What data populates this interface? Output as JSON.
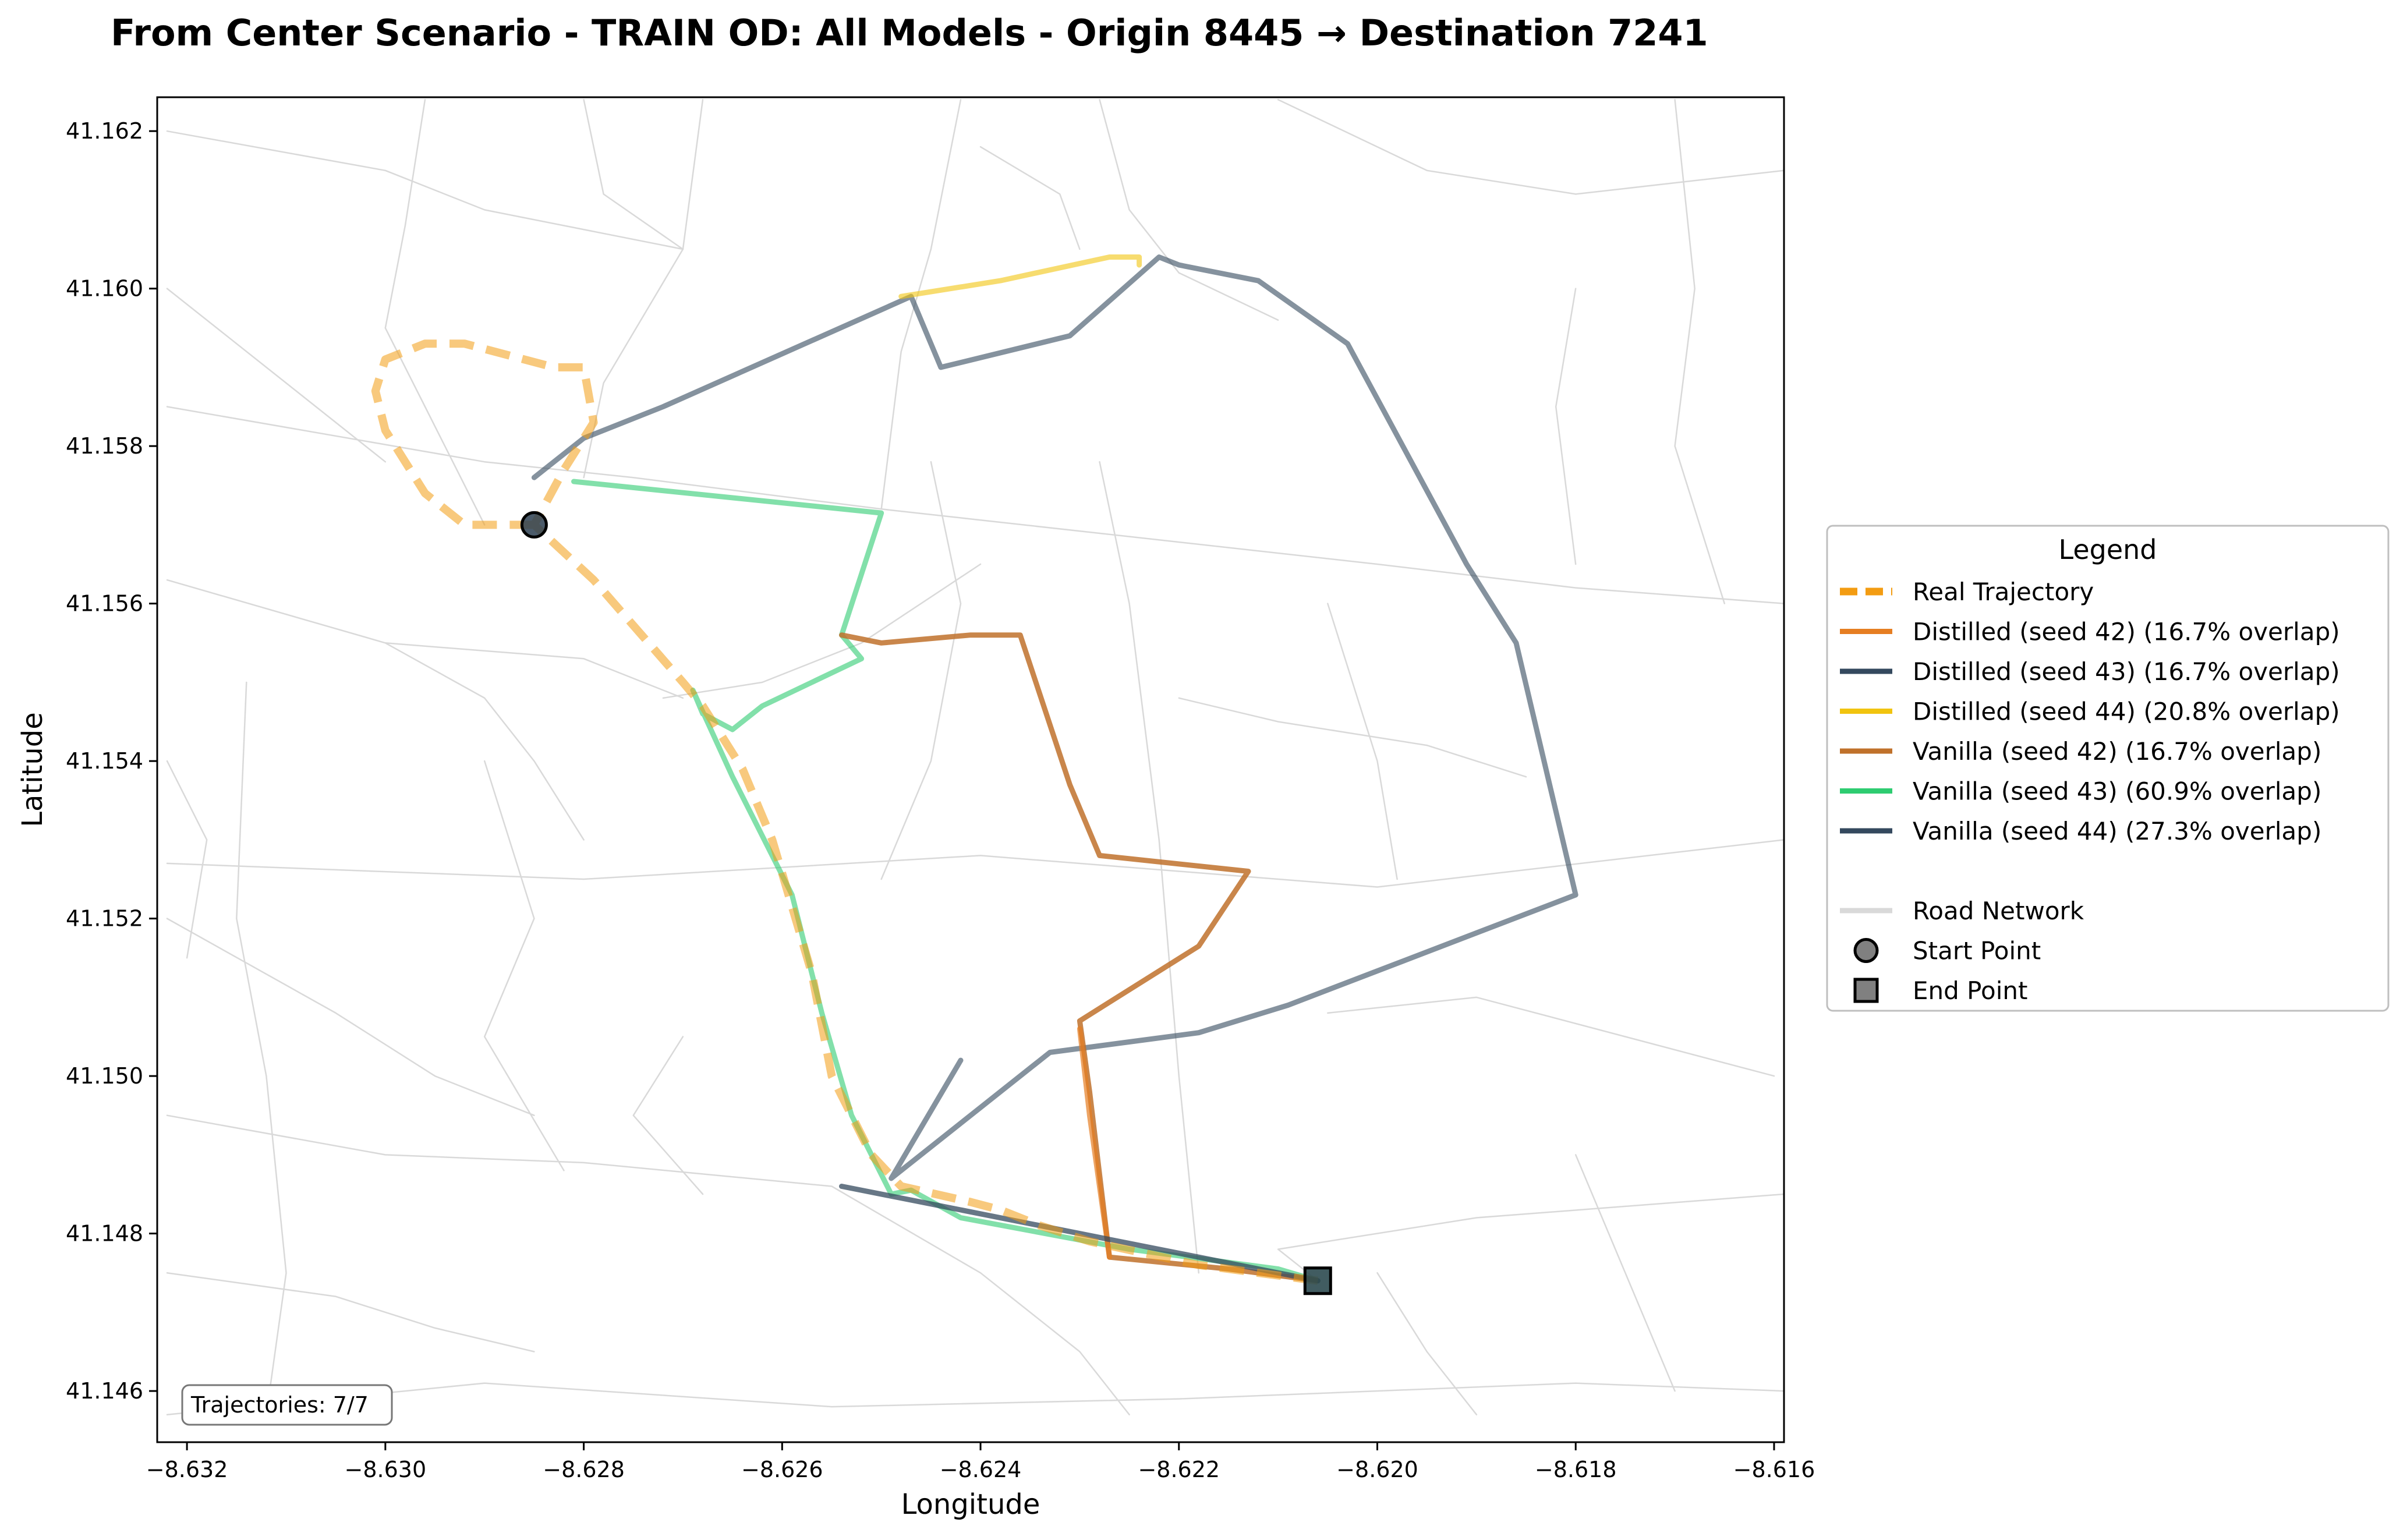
{
  "chart_data": {
    "type": "line",
    "title": "From Center Scenario - TRAIN OD: All Models - Origin 8445 → Destination 7241",
    "xlabel": "Longitude",
    "ylabel": "Latitude",
    "xlim": [
      -8.6323,
      -8.6159
    ],
    "ylim": [
      41.14535,
      41.16243
    ],
    "x_ticks": [
      -8.632,
      -8.63,
      -8.628,
      -8.626,
      -8.624,
      -8.622,
      -8.62,
      -8.618,
      -8.616
    ],
    "x_tick_labels": [
      "−8.632",
      "−8.630",
      "−8.628",
      "−8.626",
      "−8.624",
      "−8.622",
      "−8.620",
      "−8.618",
      "−8.616"
    ],
    "y_ticks": [
      41.146,
      41.148,
      41.15,
      41.152,
      41.154,
      41.156,
      41.158,
      41.16,
      41.162
    ],
    "y_tick_labels": [
      "41.146",
      "41.148",
      "41.150",
      "41.152",
      "41.154",
      "41.156",
      "41.158",
      "41.160",
      "41.162"
    ],
    "grid": false,
    "legend_placement": "right",
    "legend_title": "Legend",
    "annotation": "Trajectories: 7/7",
    "road_color": "#d9d9d9",
    "road_network": [
      [
        [
          -8.6322,
          41.1585
        ],
        [
          -8.629,
          41.1578
        ],
        [
          -8.6275,
          41.1576
        ],
        [
          -8.625,
          41.1572
        ],
        [
          -8.62,
          41.1565
        ],
        [
          -8.618,
          41.1562
        ],
        [
          -8.6159,
          41.156
        ]
      ],
      [
        [
          -8.6322,
          41.1527
        ],
        [
          -8.628,
          41.1525
        ],
        [
          -8.624,
          41.1528
        ],
        [
          -8.62,
          41.1524
        ],
        [
          -8.6159,
          41.153
        ]
      ],
      [
        [
          -8.6322,
          41.1495
        ],
        [
          -8.63,
          41.149
        ],
        [
          -8.628,
          41.1489
        ],
        [
          -8.6255,
          41.1486
        ]
      ],
      [
        [
          -8.6159,
          41.1485
        ],
        [
          -8.619,
          41.1482
        ],
        [
          -8.621,
          41.1478
        ],
        [
          -8.6206,
          41.1474
        ]
      ],
      [
        [
          -8.6322,
          41.1457
        ],
        [
          -8.629,
          41.1461
        ],
        [
          -8.6255,
          41.1458
        ],
        [
          -8.622,
          41.1459
        ],
        [
          -8.618,
          41.1461
        ],
        [
          -8.6159,
          41.146
        ]
      ],
      [
        [
          -8.6322,
          41.1563
        ],
        [
          -8.63,
          41.1555
        ],
        [
          -8.629,
          41.1548
        ],
        [
          -8.6285,
          41.154
        ],
        [
          -8.628,
          41.153
        ]
      ],
      [
        [
          -8.6296,
          41.1624
        ],
        [
          -8.6298,
          41.1608
        ],
        [
          -8.63,
          41.1595
        ],
        [
          -8.6296,
          41.1585
        ],
        [
          -8.629,
          41.157
        ]
      ],
      [
        [
          -8.6268,
          41.1624
        ],
        [
          -8.627,
          41.1605
        ],
        [
          -8.6278,
          41.1588
        ],
        [
          -8.628,
          41.1576
        ]
      ],
      [
        [
          -8.6242,
          41.1624
        ],
        [
          -8.6245,
          41.1605
        ],
        [
          -8.6248,
          41.1592
        ],
        [
          -8.625,
          41.1572
        ]
      ],
      [
        [
          -8.6228,
          41.1624
        ],
        [
          -8.6225,
          41.161
        ],
        [
          -8.622,
          41.1602
        ],
        [
          -8.621,
          41.1596
        ]
      ],
      [
        [
          -8.6322,
          41.162
        ],
        [
          -8.63,
          41.1615
        ],
        [
          -8.629,
          41.161
        ],
        [
          -8.627,
          41.1605
        ]
      ],
      [
        [
          -8.621,
          41.1624
        ],
        [
          -8.6195,
          41.1615
        ],
        [
          -8.618,
          41.1612
        ],
        [
          -8.6159,
          41.1615
        ]
      ],
      [
        [
          -8.6322,
          41.16
        ],
        [
          -8.631,
          41.1588
        ],
        [
          -8.63,
          41.1578
        ]
      ],
      [
        [
          -8.6245,
          41.1578
        ],
        [
          -8.6242,
          41.156
        ],
        [
          -8.6245,
          41.154
        ],
        [
          -8.625,
          41.1525
        ]
      ],
      [
        [
          -8.6228,
          41.1578
        ],
        [
          -8.6225,
          41.156
        ],
        [
          -8.6222,
          41.153
        ],
        [
          -8.622,
          41.15
        ],
        [
          -8.6218,
          41.1475
        ]
      ],
      [
        [
          -8.6205,
          41.156
        ],
        [
          -8.62,
          41.154
        ],
        [
          -8.6198,
          41.1525
        ]
      ],
      [
        [
          -8.618,
          41.16
        ],
        [
          -8.6182,
          41.1585
        ],
        [
          -8.618,
          41.1565
        ]
      ],
      [
        [
          -8.617,
          41.1624
        ],
        [
          -8.6168,
          41.16
        ],
        [
          -8.617,
          41.158
        ],
        [
          -8.6165,
          41.156
        ]
      ],
      [
        [
          -8.6314,
          41.155
        ],
        [
          -8.6315,
          41.152
        ],
        [
          -8.6312,
          41.15
        ],
        [
          -8.631,
          41.1475
        ],
        [
          -8.6312,
          41.1457
        ]
      ],
      [
        [
          -8.629,
          41.154
        ],
        [
          -8.6285,
          41.152
        ],
        [
          -8.629,
          41.1505
        ],
        [
          -8.6282,
          41.1488
        ]
      ],
      [
        [
          -8.6255,
          41.1486
        ],
        [
          -8.624,
          41.1475
        ],
        [
          -8.623,
          41.1465
        ],
        [
          -8.6225,
          41.1457
        ]
      ],
      [
        [
          -8.62,
          41.1475
        ],
        [
          -8.6195,
          41.1465
        ],
        [
          -8.619,
          41.1457
        ]
      ],
      [
        [
          -8.618,
          41.149
        ],
        [
          -8.6175,
          41.1475
        ],
        [
          -8.617,
          41.146
        ]
      ],
      [
        [
          -8.624,
          41.1565
        ],
        [
          -8.6252,
          41.1555
        ],
        [
          -8.6262,
          41.155
        ],
        [
          -8.6272,
          41.1548
        ]
      ],
      [
        [
          -8.63,
          41.1555
        ],
        [
          -8.628,
          41.1553
        ],
        [
          -8.627,
          41.1548
        ]
      ],
      [
        [
          -8.622,
          41.1548
        ],
        [
          -8.621,
          41.1545
        ],
        [
          -8.6195,
          41.1542
        ],
        [
          -8.6185,
          41.1538
        ]
      ],
      [
        [
          -8.6322,
          41.154
        ],
        [
          -8.6318,
          41.153
        ],
        [
          -8.632,
          41.1515
        ]
      ],
      [
        [
          -8.6322,
          41.152
        ],
        [
          -8.6305,
          41.1508
        ],
        [
          -8.6295,
          41.15
        ],
        [
          -8.6285,
          41.1495
        ]
      ],
      [
        [
          -8.6322,
          41.1475
        ],
        [
          -8.6305,
          41.1472
        ],
        [
          -8.6295,
          41.1468
        ],
        [
          -8.6285,
          41.1465
        ]
      ],
      [
        [
          -8.627,
          41.1505
        ],
        [
          -8.6275,
          41.1495
        ],
        [
          -8.6268,
          41.1485
        ]
      ],
      [
        [
          -8.616,
          41.15
        ],
        [
          -8.6175,
          41.1505
        ],
        [
          -8.619,
          41.151
        ],
        [
          -8.6205,
          41.1508
        ]
      ],
      [
        [
          -8.628,
          41.1624
        ],
        [
          -8.6278,
          41.1612
        ],
        [
          -8.627,
          41.1605
        ]
      ],
      [
        [
          -8.624,
          41.1618
        ],
        [
          -8.6232,
          41.1612
        ],
        [
          -8.623,
          41.1605
        ]
      ]
    ],
    "series": [
      {
        "name": "Vanilla (seed 43) (60.9% overlap)",
        "color": "#2ecc71",
        "opacity": 0.6,
        "dash": false,
        "x": [
          -8.6281,
          -8.625,
          -8.6254,
          -8.6252,
          -8.6262,
          -8.6265,
          -8.6268,
          -8.6269,
          -8.6265,
          -8.6259,
          -8.6256,
          -8.6253,
          -8.6249,
          -8.6247,
          -8.6242,
          -8.6225,
          -8.621,
          -8.6206
        ],
        "y": [
          41.15755,
          41.15715,
          41.1556,
          41.1553,
          41.1547,
          41.1544,
          41.1546,
          41.1549,
          41.1538,
          41.1523,
          41.1508,
          41.1495,
          41.1485,
          41.14855,
          41.1482,
          41.1478,
          41.14755,
          41.1474
        ]
      },
      {
        "name": "Vanilla (seed 44) (27.3% overlap)",
        "color": "#34495e",
        "opacity": 0.6,
        "dash": false,
        "x": [
          -8.6242,
          -8.6249,
          -8.6233,
          -8.6218,
          -8.6209,
          -8.618,
          -8.6186,
          -8.6191,
          -8.6203,
          -8.6212,
          -8.622,
          -8.6222,
          -8.6231,
          -8.6244,
          -8.6247,
          -8.6272,
          -8.628,
          -8.6285
        ],
        "y": [
          41.1502,
          41.1487,
          41.1503,
          41.15055,
          41.1509,
          41.1523,
          41.1555,
          41.1565,
          41.1593,
          41.1601,
          41.1603,
          41.1604,
          41.1594,
          41.159,
          41.1599,
          41.1585,
          41.1581,
          41.1576
        ]
      },
      {
        "name": "Vanilla (seed 42) (16.7% overlap)",
        "color": "#c0712b",
        "opacity": 0.85,
        "dash": false,
        "x": [
          -8.6254,
          -8.625,
          -8.6241,
          -8.6236,
          -8.6231,
          -8.6228,
          -8.6213,
          -8.6218,
          -8.623,
          -8.6229,
          -8.6227,
          -8.6215,
          -8.6206
        ],
        "y": [
          41.1556,
          41.1555,
          41.1556,
          41.1556,
          41.1537,
          41.1528,
          41.1526,
          41.15165,
          41.1507,
          41.1498,
          41.1477,
          41.14755,
          41.1474
        ]
      },
      {
        "name": "Distilled (seed 42) (16.7% overlap)",
        "color": "#e67e22",
        "opacity": 0.7,
        "dash": false,
        "x": [
          -8.6227,
          -8.6229,
          -8.623
        ],
        "y": [
          41.1477,
          41.1495,
          41.1506
        ]
      },
      {
        "name": "Distilled (seed 43) (16.7% overlap)",
        "color": "#34495e",
        "opacity": 0.75,
        "dash": false,
        "x": [
          -8.6254,
          -8.6246,
          -8.6234,
          -8.6218,
          -8.6206
        ],
        "y": [
          41.1486,
          41.1484,
          41.1481,
          41.1477,
          41.1474
        ]
      },
      {
        "name": "Distilled (seed 44) (20.8% overlap)",
        "color": "#f1c40f",
        "opacity": 0.6,
        "dash": false,
        "x": [
          -8.6248,
          -8.6238,
          -8.6227,
          -8.6224,
          -8.6224
        ],
        "y": [
          41.1599,
          41.1601,
          41.1604,
          41.1604,
          41.1603
        ]
      },
      {
        "name": "Real Trajectory",
        "color": "#f39c12",
        "opacity": 0.55,
        "dash": true,
        "x": [
          -8.6285,
          -8.6288,
          -8.6292,
          -8.6296,
          -8.63,
          -8.6301,
          -8.63,
          -8.6296,
          -8.6292,
          -8.6283,
          -8.628,
          -8.6279,
          -8.6282,
          -8.6285,
          -8.6279,
          -8.627,
          -8.6268,
          -8.6264,
          -8.6261,
          -8.6257,
          -8.6255,
          -8.6251,
          -8.6248,
          -8.6241,
          -8.6238,
          -8.6234,
          -8.6229,
          -8.6218,
          -8.6206
        ],
        "y": [
          41.157,
          41.157,
          41.157,
          41.1574,
          41.1582,
          41.1587,
          41.1591,
          41.1593,
          41.1593,
          41.159,
          41.159,
          41.1583,
          41.1577,
          41.157,
          41.1563,
          41.155,
          41.1547,
          41.1539,
          41.153,
          41.1513,
          41.15,
          41.149,
          41.1486,
          41.1484,
          41.1483,
          41.1481,
          41.1479,
          41.1476,
          41.1474
        ]
      }
    ],
    "start_point": {
      "label": "Start Point",
      "x": -8.6285,
      "y": 41.157,
      "color": "#2c3e50"
    },
    "end_point": {
      "label": "End Point",
      "x": -8.6206,
      "y": 41.1474,
      "color": "#2c4a50"
    },
    "legend_items": [
      {
        "label": "Real Trajectory",
        "color": "#f39c12",
        "style": "dashed"
      },
      {
        "label": "Distilled (seed 42) (16.7% overlap)",
        "color": "#e67e22",
        "style": "solid"
      },
      {
        "label": "Distilled (seed 43) (16.7% overlap)",
        "color": "#34495e",
        "style": "solid"
      },
      {
        "label": "Distilled (seed 44) (20.8% overlap)",
        "color": "#f1c40f",
        "style": "solid"
      },
      {
        "label": "Vanilla (seed 42) (16.7% overlap)",
        "color": "#c0712b",
        "style": "solid"
      },
      {
        "label": "Vanilla (seed 43) (60.9% overlap)",
        "color": "#2ecc71",
        "style": "solid"
      },
      {
        "label": "Vanilla (seed 44) (27.3% overlap)",
        "color": "#34495e",
        "style": "solid"
      },
      {
        "label": "",
        "color": "",
        "style": "blank"
      },
      {
        "label": "Road Network",
        "color": "#d9d9d9",
        "style": "solid"
      },
      {
        "label": "Start Point",
        "color": "#808080",
        "style": "circle"
      },
      {
        "label": "End Point",
        "color": "#808080",
        "style": "square"
      }
    ]
  }
}
